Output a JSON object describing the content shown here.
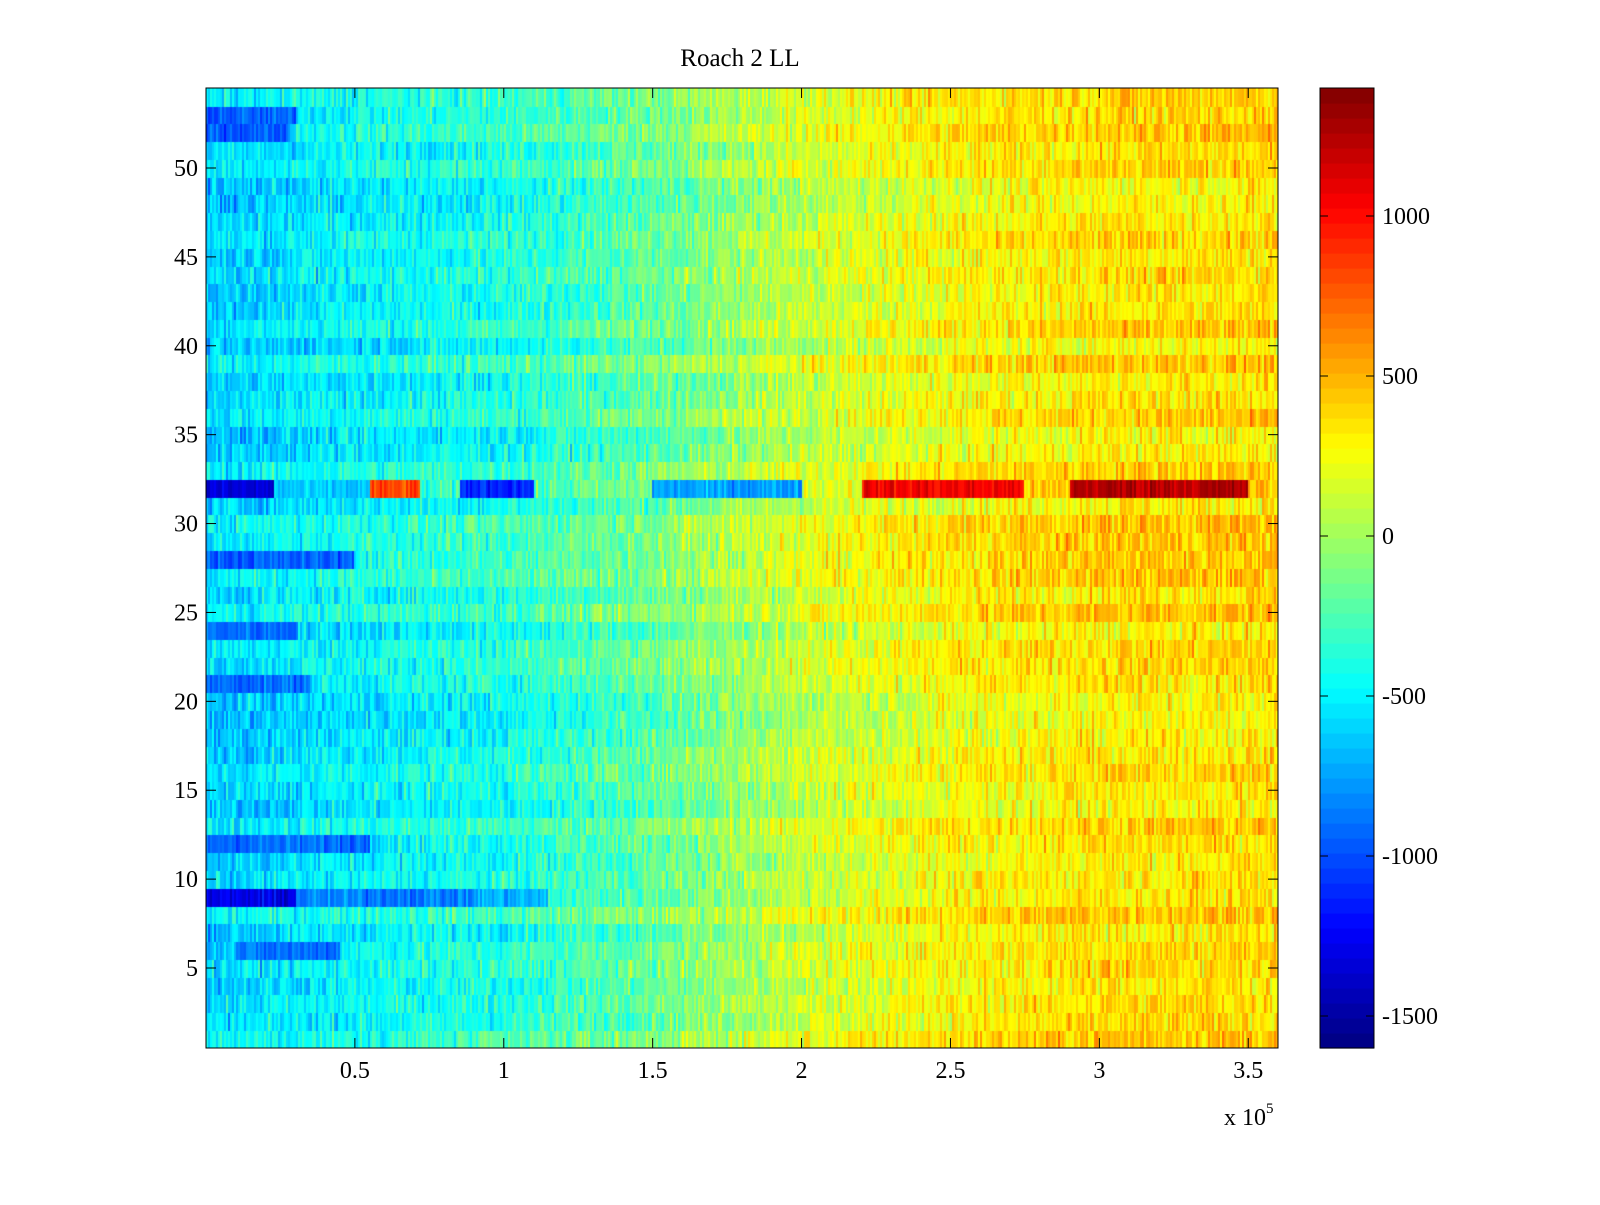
{
  "chart_data": {
    "type": "heatmap",
    "title": "Roach 2 LL",
    "xlabel": "",
    "ylabel": "",
    "x_exponent_label": "x 10",
    "x_exponent_power": "5",
    "xlim": [
      0,
      360000
    ],
    "ylim": [
      0.5,
      54.5
    ],
    "x_ticks": [
      50000,
      100000,
      150000,
      200000,
      250000,
      300000,
      350000
    ],
    "x_tick_labels": [
      "0.5",
      "1",
      "1.5",
      "2",
      "2.5",
      "3",
      "3.5"
    ],
    "y_ticks": [
      5,
      10,
      15,
      20,
      25,
      30,
      35,
      40,
      45,
      50
    ],
    "y_tick_labels": [
      "5",
      "10",
      "15",
      "20",
      "25",
      "30",
      "35",
      "40",
      "45",
      "50"
    ],
    "rows": 54,
    "colormap": "jet",
    "color_range": [
      -1600,
      1400
    ],
    "colorbar": {
      "ticks": [
        -1500,
        -1000,
        -500,
        0,
        500,
        1000
      ],
      "tick_labels": [
        "-1500",
        "-1000",
        "-500",
        "0",
        "500",
        "1000"
      ],
      "placement": "right"
    },
    "trend": {
      "x_knots": [
        0,
        50000,
        100000,
        150000,
        200000,
        250000,
        300000,
        360000
      ],
      "values": [
        -600,
        -470,
        -380,
        -170,
        120,
        280,
        360,
        380
      ]
    },
    "row_anomalies": [
      {
        "row": 32,
        "segments": [
          {
            "x": [
              0,
              23000
            ],
            "value": -1350
          },
          {
            "x": [
              23000,
              55000
            ],
            "value": -650
          },
          {
            "x": [
              55000,
              72000
            ],
            "value": 800
          },
          {
            "x": [
              85000,
              110000
            ],
            "value": -1100
          },
          {
            "x": [
              150000,
              200000
            ],
            "value": -750
          },
          {
            "x": [
              220000,
              275000
            ],
            "value": 1050
          },
          {
            "x": [
              290000,
              350000
            ],
            "value": 1250
          }
        ]
      },
      {
        "row": 9,
        "segments": [
          {
            "x": [
              0,
              30000
            ],
            "value": -1300
          },
          {
            "x": [
              30000,
              90000
            ],
            "value": -850
          },
          {
            "x": [
              90000,
              115000
            ],
            "value": -700
          }
        ]
      },
      {
        "row": 28,
        "segments": [
          {
            "x": [
              0,
              50000
            ],
            "value": -950
          }
        ]
      },
      {
        "row": 12,
        "segments": [
          {
            "x": [
              0,
              55000
            ],
            "value": -900
          }
        ]
      },
      {
        "row": 53,
        "segments": [
          {
            "x": [
              0,
              30000
            ],
            "value": -950
          }
        ]
      },
      {
        "row": 52,
        "segments": [
          {
            "x": [
              0,
              28000
            ],
            "value": -950
          }
        ]
      },
      {
        "row": 6,
        "segments": [
          {
            "x": [
              10000,
              45000
            ],
            "value": -900
          }
        ]
      },
      {
        "row": 24,
        "segments": [
          {
            "x": [
              0,
              30000
            ],
            "value": -900
          }
        ]
      },
      {
        "row": 21,
        "segments": [
          {
            "x": [
              0,
              35000
            ],
            "value": -900
          }
        ]
      }
    ]
  }
}
